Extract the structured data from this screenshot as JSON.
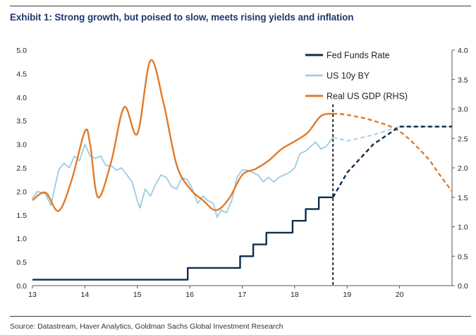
{
  "title": "Exhibit 1: Strong growth, but poised to slow, meets rising yields and inflation",
  "source": "Source: Datastream, Haver Analytics, Goldman Sachs Global Investment Research",
  "chart_data": {
    "type": "line",
    "x_ticks": [
      "13",
      "14",
      "15",
      "16",
      "17",
      "18",
      "19",
      "20"
    ],
    "x_range": [
      2013.0,
      2021.0
    ],
    "y_left": {
      "range": [
        0,
        5
      ],
      "ticks": [
        "0.0",
        "0.5",
        "1.0",
        "1.5",
        "2.0",
        "2.5",
        "3.0",
        "3.5",
        "4.0",
        "4.5",
        "5.0"
      ]
    },
    "y_right": {
      "range": [
        0,
        4
      ],
      "ticks": [
        "0.0",
        "0.5",
        "1.0",
        "1.5",
        "2.0",
        "2.5",
        "3.0",
        "3.5",
        "4.0"
      ]
    },
    "forecast_start": 2018.73,
    "colors": {
      "fed": "#0c2d4f",
      "us10y": "#9ccbe3",
      "gdp": "#e07b2a",
      "divider": "#000000"
    },
    "series": [
      {
        "name": "Fed Funds Rate",
        "axis": "left",
        "style": "step",
        "actual": [
          [
            2013.0,
            0.125
          ],
          [
            2015.96,
            0.375
          ],
          [
            2016.96,
            0.625
          ],
          [
            2017.21,
            0.875
          ],
          [
            2017.46,
            1.125
          ],
          [
            2017.96,
            1.375
          ],
          [
            2018.21,
            1.625
          ],
          [
            2018.46,
            1.875
          ],
          [
            2018.73,
            1.875
          ]
        ],
        "forecast": [
          [
            2018.73,
            1.875
          ],
          [
            2019.0,
            2.4
          ],
          [
            2019.5,
            3.0
          ],
          [
            2020.0,
            3.375
          ],
          [
            2021.0,
            3.375
          ]
        ]
      },
      {
        "name": "US 10y BY",
        "axis": "left",
        "style": "line",
        "actual": [
          [
            2013.0,
            1.85
          ],
          [
            2013.1,
            2.0
          ],
          [
            2013.25,
            1.95
          ],
          [
            2013.35,
            1.7
          ],
          [
            2013.42,
            2.05
          ],
          [
            2013.5,
            2.45
          ],
          [
            2013.6,
            2.6
          ],
          [
            2013.7,
            2.5
          ],
          [
            2013.8,
            2.75
          ],
          [
            2013.9,
            2.65
          ],
          [
            2014.0,
            3.0
          ],
          [
            2014.1,
            2.75
          ],
          [
            2014.2,
            2.7
          ],
          [
            2014.3,
            2.75
          ],
          [
            2014.4,
            2.55
          ],
          [
            2014.5,
            2.55
          ],
          [
            2014.6,
            2.45
          ],
          [
            2014.7,
            2.5
          ],
          [
            2014.8,
            2.35
          ],
          [
            2014.9,
            2.2
          ],
          [
            2015.0,
            1.8
          ],
          [
            2015.05,
            1.65
          ],
          [
            2015.15,
            2.05
          ],
          [
            2015.25,
            1.9
          ],
          [
            2015.35,
            2.15
          ],
          [
            2015.45,
            2.35
          ],
          [
            2015.55,
            2.3
          ],
          [
            2015.65,
            2.1
          ],
          [
            2015.75,
            2.05
          ],
          [
            2015.85,
            2.3
          ],
          [
            2015.95,
            2.25
          ],
          [
            2016.05,
            2.05
          ],
          [
            2016.15,
            1.75
          ],
          [
            2016.25,
            1.9
          ],
          [
            2016.35,
            1.8
          ],
          [
            2016.45,
            1.75
          ],
          [
            2016.52,
            1.45
          ],
          [
            2016.6,
            1.6
          ],
          [
            2016.7,
            1.55
          ],
          [
            2016.8,
            1.8
          ],
          [
            2016.9,
            2.3
          ],
          [
            2017.0,
            2.45
          ],
          [
            2017.1,
            2.45
          ],
          [
            2017.2,
            2.4
          ],
          [
            2017.3,
            2.35
          ],
          [
            2017.4,
            2.2
          ],
          [
            2017.5,
            2.3
          ],
          [
            2017.6,
            2.2
          ],
          [
            2017.7,
            2.3
          ],
          [
            2017.8,
            2.35
          ],
          [
            2017.9,
            2.4
          ],
          [
            2018.0,
            2.5
          ],
          [
            2018.1,
            2.8
          ],
          [
            2018.2,
            2.85
          ],
          [
            2018.3,
            2.95
          ],
          [
            2018.4,
            3.05
          ],
          [
            2018.5,
            2.9
          ],
          [
            2018.6,
            2.95
          ],
          [
            2018.73,
            3.15
          ]
        ],
        "forecast": [
          [
            2018.73,
            3.15
          ],
          [
            2019.0,
            3.07
          ],
          [
            2019.5,
            3.2
          ],
          [
            2020.0,
            3.375
          ],
          [
            2021.0,
            3.375
          ]
        ]
      },
      {
        "name": "Real US GDP (RHS)",
        "axis": "right",
        "style": "line",
        "actual": [
          [
            2013.0,
            1.45
          ],
          [
            2013.25,
            1.58
          ],
          [
            2013.5,
            1.27
          ],
          [
            2013.75,
            1.8
          ],
          [
            2014.0,
            2.62
          ],
          [
            2014.1,
            2.4
          ],
          [
            2014.25,
            1.5
          ],
          [
            2014.5,
            2.1
          ],
          [
            2014.75,
            3.03
          ],
          [
            2015.0,
            2.58
          ],
          [
            2015.25,
            3.82
          ],
          [
            2015.5,
            3.1
          ],
          [
            2015.75,
            2.05
          ],
          [
            2016.0,
            1.65
          ],
          [
            2016.25,
            1.45
          ],
          [
            2016.5,
            1.28
          ],
          [
            2016.75,
            1.48
          ],
          [
            2017.0,
            1.88
          ],
          [
            2017.25,
            1.98
          ],
          [
            2017.5,
            2.12
          ],
          [
            2017.75,
            2.32
          ],
          [
            2018.0,
            2.45
          ],
          [
            2018.25,
            2.6
          ],
          [
            2018.5,
            2.88
          ],
          [
            2018.73,
            2.92
          ]
        ],
        "forecast": [
          [
            2018.73,
            2.92
          ],
          [
            2019.0,
            2.9
          ],
          [
            2019.5,
            2.8
          ],
          [
            2020.0,
            2.62
          ],
          [
            2020.5,
            2.2
          ],
          [
            2020.75,
            1.9
          ],
          [
            2021.0,
            1.6
          ]
        ]
      }
    ],
    "legend": [
      "Fed Funds Rate",
      "US 10y BY",
      "Real US GDP (RHS)"
    ]
  }
}
